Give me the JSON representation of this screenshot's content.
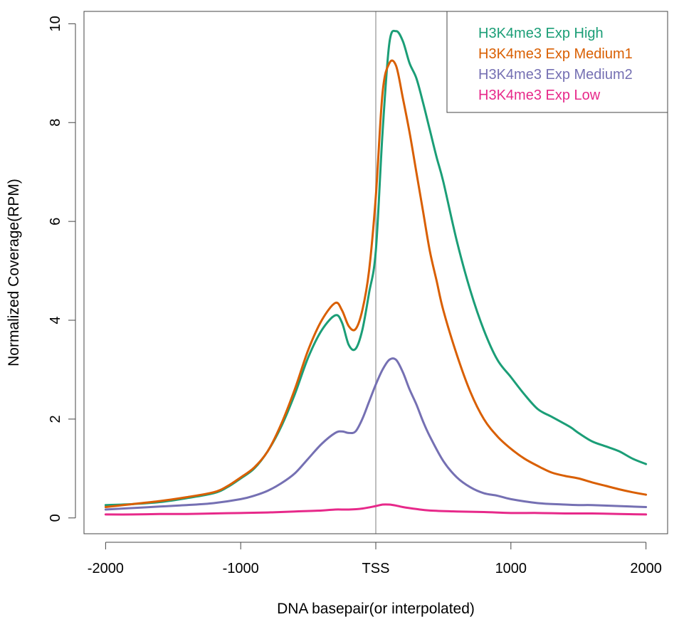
{
  "chart_data": {
    "type": "line",
    "title": "",
    "xlabel": "DNA basepair(or interpolated)",
    "ylabel": "Normalized Coverage(RPM)",
    "xlim": [
      -2160,
      2160
    ],
    "ylim": [
      -0.32,
      10.25
    ],
    "x_ticks": [
      {
        "value": -2000,
        "label": "-2000"
      },
      {
        "value": -1000,
        "label": "-1000"
      },
      {
        "value": 0,
        "label": "TSS"
      },
      {
        "value": 1000,
        "label": "1000"
      },
      {
        "value": 2000,
        "label": "2000"
      }
    ],
    "y_ticks": [
      {
        "value": 0,
        "label": "0"
      },
      {
        "value": 2,
        "label": "2"
      },
      {
        "value": 4,
        "label": "4"
      },
      {
        "value": 6,
        "label": "6"
      },
      {
        "value": 8,
        "label": "8"
      },
      {
        "value": 10,
        "label": "10"
      }
    ],
    "vline": {
      "x": 0,
      "color": "#bebebe"
    },
    "grid": false,
    "legend_position": "top-right",
    "series": [
      {
        "name": "H3K4me3 Exp High",
        "color": "#1b9e77",
        "x": [
          -2000,
          -1800,
          -1600,
          -1400,
          -1200,
          -1100,
          -1000,
          -900,
          -800,
          -700,
          -600,
          -500,
          -400,
          -300,
          -250,
          -200,
          -150,
          -100,
          -50,
          0,
          50,
          100,
          150,
          200,
          250,
          300,
          350,
          400,
          450,
          500,
          600,
          700,
          800,
          900,
          1000,
          1100,
          1200,
          1300,
          1400,
          1450,
          1500,
          1600,
          1700,
          1800,
          1900,
          2000
        ],
        "y": [
          0.26,
          0.28,
          0.32,
          0.4,
          0.5,
          0.62,
          0.8,
          1.0,
          1.35,
          1.85,
          2.5,
          3.25,
          3.8,
          4.1,
          3.95,
          3.5,
          3.42,
          3.8,
          4.55,
          5.4,
          7.8,
          9.6,
          9.85,
          9.65,
          9.2,
          8.9,
          8.4,
          7.85,
          7.3,
          6.8,
          5.6,
          4.6,
          3.8,
          3.2,
          2.85,
          2.5,
          2.2,
          2.05,
          1.9,
          1.82,
          1.72,
          1.55,
          1.45,
          1.35,
          1.2,
          1.09
        ]
      },
      {
        "name": "H3K4me3 Exp Medium1",
        "color": "#d95f02",
        "x": [
          -2000,
          -1800,
          -1600,
          -1400,
          -1200,
          -1100,
          -1000,
          -900,
          -800,
          -700,
          -600,
          -500,
          -400,
          -300,
          -250,
          -200,
          -150,
          -100,
          -50,
          0,
          50,
          100,
          150,
          200,
          250,
          300,
          350,
          400,
          450,
          500,
          600,
          700,
          800,
          900,
          1000,
          1100,
          1200,
          1300,
          1400,
          1500,
          1600,
          1700,
          1800,
          1900,
          2000
        ],
        "y": [
          0.22,
          0.28,
          0.34,
          0.42,
          0.52,
          0.64,
          0.82,
          1.02,
          1.35,
          1.9,
          2.6,
          3.4,
          4.0,
          4.35,
          4.2,
          3.88,
          3.82,
          4.2,
          5.0,
          6.5,
          8.6,
          9.2,
          9.15,
          8.5,
          7.8,
          7.0,
          6.2,
          5.4,
          4.8,
          4.2,
          3.3,
          2.55,
          2.0,
          1.65,
          1.4,
          1.2,
          1.05,
          0.92,
          0.85,
          0.8,
          0.72,
          0.65,
          0.58,
          0.52,
          0.47
        ]
      },
      {
        "name": "H3K4me3 Exp Medium2",
        "color": "#7570b3",
        "x": [
          -2000,
          -1800,
          -1600,
          -1400,
          -1200,
          -1000,
          -900,
          -800,
          -700,
          -600,
          -500,
          -400,
          -300,
          -250,
          -200,
          -150,
          -100,
          -50,
          0,
          50,
          100,
          150,
          200,
          250,
          300,
          350,
          400,
          500,
          600,
          700,
          800,
          900,
          1000,
          1200,
          1400,
          1500,
          1600,
          1800,
          2000
        ],
        "y": [
          0.17,
          0.2,
          0.23,
          0.26,
          0.3,
          0.38,
          0.45,
          0.55,
          0.7,
          0.9,
          1.2,
          1.5,
          1.72,
          1.75,
          1.72,
          1.75,
          2.0,
          2.35,
          2.7,
          3.0,
          3.2,
          3.2,
          2.95,
          2.6,
          2.3,
          1.95,
          1.65,
          1.15,
          0.82,
          0.62,
          0.5,
          0.45,
          0.38,
          0.3,
          0.27,
          0.26,
          0.26,
          0.24,
          0.22
        ]
      },
      {
        "name": "H3K4me3 Exp Low",
        "color": "#e7298a",
        "x": [
          -2000,
          -1800,
          -1600,
          -1400,
          -1200,
          -1000,
          -800,
          -600,
          -400,
          -300,
          -200,
          -100,
          0,
          50,
          100,
          150,
          200,
          300,
          400,
          600,
          800,
          1000,
          1200,
          1400,
          1600,
          1800,
          2000
        ],
        "y": [
          0.07,
          0.07,
          0.08,
          0.08,
          0.09,
          0.1,
          0.11,
          0.13,
          0.15,
          0.17,
          0.17,
          0.19,
          0.24,
          0.27,
          0.27,
          0.25,
          0.22,
          0.18,
          0.15,
          0.13,
          0.12,
          0.1,
          0.1,
          0.09,
          0.09,
          0.08,
          0.07
        ]
      }
    ]
  }
}
